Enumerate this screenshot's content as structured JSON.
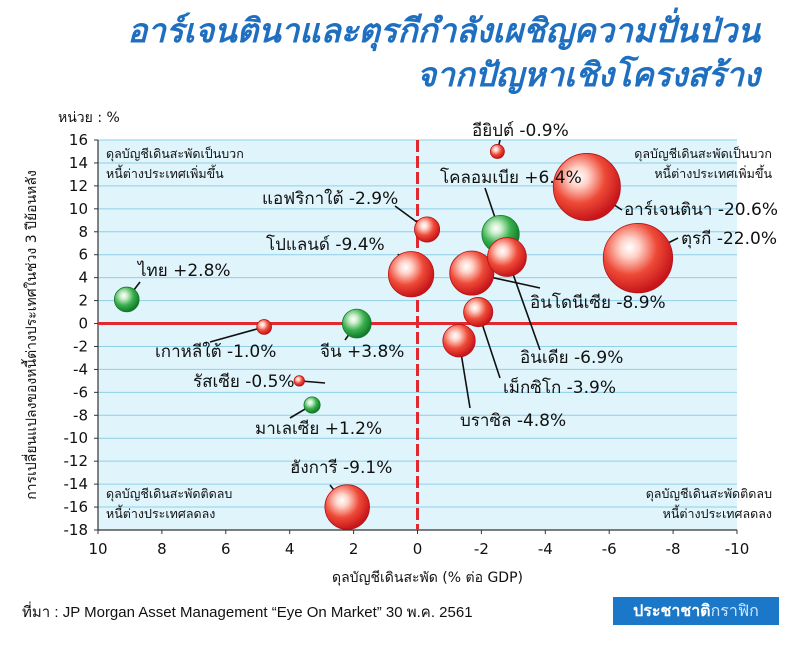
{
  "title_line1": "อาร์เจนตินาและตุรกีกำลังเผชิญความปั่นป่วน",
  "title_line2": "จากปัญหาเชิงโครงสร้าง",
  "unit_label": "หน่วย : %",
  "source": "ที่มา : JP Morgan Asset Management “Eye On Market” 30 พ.ค. 2561",
  "brand": {
    "main": "ประชาชาติ",
    "accent": "กราฟิก"
  },
  "colors": {
    "title": "#1f6fc0",
    "plot_bg": "#dff4fb",
    "grid": "#8fcfe8",
    "axis_zero": "#e0282e",
    "red_bubble": "#e8392b",
    "green_bubble": "#2ea84a",
    "brand_bg": "#1b78c8"
  },
  "quadrants": {
    "top_left": [
      "ดุลบัญชีเดินสะพัดเป็นบวก",
      "หนี้ต่างประเทศเพิ่มขึ้น"
    ],
    "top_right": [
      "ดุลบัญชีเดินสะพัดเป็นบวก",
      "หนี้ต่างประเทศเพิ่มขึ้น"
    ],
    "bottom_left": [
      "ดุลบัญชีเดินสะพัดติดลบ",
      "หนี้ต่างประเทศลดลง"
    ],
    "bottom_right": [
      "ดุลบัญชีเดินสะพัดติดลบ",
      "หนี้ต่างประเทศลดลง"
    ]
  },
  "chart_data": {
    "type": "scatter",
    "title": "อาร์เจนตินาและตุรกีกำลังเผชิญความปั่นป่วน จากปัญหาเชิงโครงสร้าง",
    "xlabel": "ดุลบัญชีเดินสะพัด (% ต่อ GDP)",
    "ylabel": "การเปลี่ยนแปลงของหนี้ต่างประเทศในช่วง 3 ปีย้อนหลัง",
    "xlim": [
      10,
      -10
    ],
    "x_reversed": true,
    "ylim": [
      -18,
      16
    ],
    "xticks": [
      10,
      8,
      6,
      4,
      2,
      0,
      -2,
      -4,
      -6,
      -8,
      -10
    ],
    "xtick_labels": [
      "10",
      "8",
      "6",
      "4",
      "2",
      "0",
      "-2",
      "-4",
      "-6",
      "-8",
      "-10"
    ],
    "yticks": [
      16,
      14,
      12,
      10,
      8,
      6,
      4,
      2,
      0,
      -2,
      -4,
      -6,
      -8,
      -10,
      -12,
      -14,
      -16,
      -18
    ],
    "grid": true,
    "bubble_size_meaning": "percent change value shown in label",
    "points": [
      {
        "label": "อียิปต์ -0.9%",
        "x": -2.5,
        "y": 15,
        "size": 0.9,
        "color": "red"
      },
      {
        "label": "โคลอมเบีย +6.4%",
        "x": -2.6,
        "y": 7.8,
        "size": 6.4,
        "color": "green"
      },
      {
        "label": "อาร์เจนตินา -20.6%",
        "x": -5.3,
        "y": 11.9,
        "size": 20.6,
        "color": "red"
      },
      {
        "label": "ตุรกี -22.0%",
        "x": -6.9,
        "y": 5.7,
        "size": 22.0,
        "color": "red"
      },
      {
        "label": "แอฟริกาใต้ -2.9%",
        "x": -0.3,
        "y": 8.2,
        "size": 2.9,
        "color": "red"
      },
      {
        "label": "โปแลนด์ -9.4%",
        "x": 0.2,
        "y": 4.3,
        "size": 9.4,
        "color": "red"
      },
      {
        "label": "ไทย +2.8%",
        "x": 9.1,
        "y": 2.1,
        "size": 2.8,
        "color": "green"
      },
      {
        "label": "อินโดนีเซีย -8.9%",
        "x": -1.7,
        "y": 4.4,
        "size": 8.9,
        "color": "red"
      },
      {
        "label": "อินเดีย -6.9%",
        "x": -2.8,
        "y": 5.8,
        "size": 6.9,
        "color": "red"
      },
      {
        "label": "เม็กซิโก -3.9%",
        "x": -1.9,
        "y": 1.0,
        "size": 3.9,
        "color": "red"
      },
      {
        "label": "บราซิล -4.8%",
        "x": -1.3,
        "y": -1.5,
        "size": 4.8,
        "color": "red"
      },
      {
        "label": "เกาหลีใต้ -1.0%",
        "x": 4.8,
        "y": -0.3,
        "size": 1.0,
        "color": "red"
      },
      {
        "label": "จีน +3.8%",
        "x": 1.9,
        "y": 0.0,
        "size": 3.8,
        "color": "green"
      },
      {
        "label": "รัสเซีย -0.5%",
        "x": 3.7,
        "y": -5.0,
        "size": 0.5,
        "color": "red"
      },
      {
        "label": "มาเลเซีย +1.2%",
        "x": 3.3,
        "y": -7.1,
        "size": 1.2,
        "color": "green"
      },
      {
        "label": "ฮังการี -9.1%",
        "x": 2.2,
        "y": -16.0,
        "size": 9.1,
        "color": "red"
      }
    ]
  }
}
